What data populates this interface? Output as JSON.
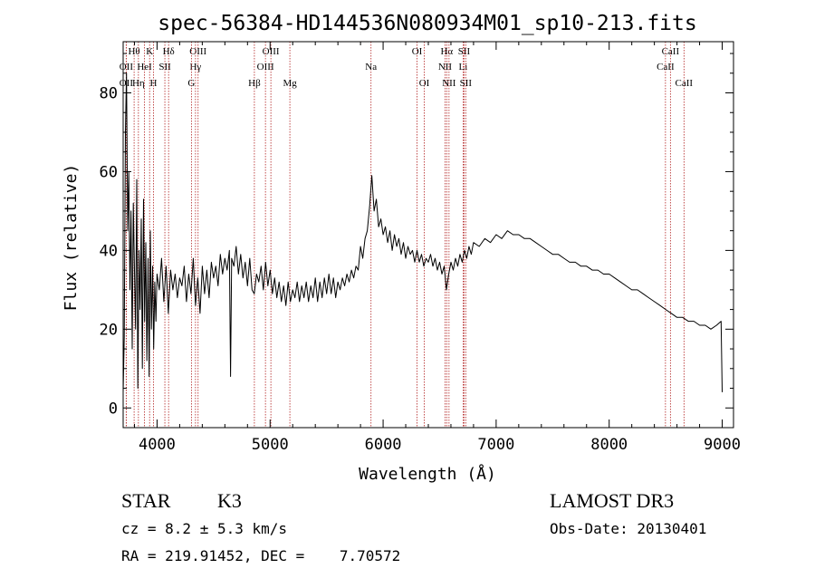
{
  "chart_data": {
    "type": "line",
    "title": "spec-56384-HD144536N080934M01_sp10-213.fits",
    "xlabel": "Wavelength (Å)",
    "ylabel": "Flux (relative)",
    "xlim": [
      3700,
      9100
    ],
    "ylim": [
      -5,
      93
    ],
    "xticks": [
      4000,
      5000,
      6000,
      7000,
      8000,
      9000
    ],
    "yticks": [
      0,
      20,
      40,
      60,
      80
    ],
    "line_color": "#000000",
    "marker_color": "#b22222",
    "spectrum": [
      [
        3700,
        4
      ],
      [
        3710,
        18
      ],
      [
        3720,
        70
      ],
      [
        3730,
        85
      ],
      [
        3740,
        45
      ],
      [
        3750,
        60
      ],
      [
        3760,
        30
      ],
      [
        3770,
        50
      ],
      [
        3780,
        15
      ],
      [
        3790,
        52
      ],
      [
        3800,
        35
      ],
      [
        3810,
        20
      ],
      [
        3820,
        58
      ],
      [
        3830,
        5
      ],
      [
        3840,
        40
      ],
      [
        3850,
        25
      ],
      [
        3860,
        48
      ],
      [
        3870,
        10
      ],
      [
        3880,
        53
      ],
      [
        3890,
        22
      ],
      [
        3900,
        42
      ],
      [
        3910,
        12
      ],
      [
        3920,
        38
      ],
      [
        3930,
        8
      ],
      [
        3940,
        45
      ],
      [
        3950,
        20
      ],
      [
        3960,
        36
      ],
      [
        3970,
        15
      ],
      [
        3980,
        32
      ],
      [
        3990,
        22
      ],
      [
        4000,
        34
      ],
      [
        4020,
        30
      ],
      [
        4040,
        38
      ],
      [
        4060,
        27
      ],
      [
        4080,
        36
      ],
      [
        4100,
        24
      ],
      [
        4120,
        35
      ],
      [
        4140,
        30
      ],
      [
        4160,
        34
      ],
      [
        4180,
        28
      ],
      [
        4200,
        33
      ],
      [
        4220,
        31
      ],
      [
        4240,
        36
      ],
      [
        4260,
        27
      ],
      [
        4280,
        34
      ],
      [
        4300,
        29
      ],
      [
        4320,
        38
      ],
      [
        4340,
        26
      ],
      [
        4360,
        33
      ],
      [
        4380,
        24
      ],
      [
        4400,
        36
      ],
      [
        4420,
        29
      ],
      [
        4440,
        35
      ],
      [
        4460,
        28
      ],
      [
        4480,
        37
      ],
      [
        4500,
        33
      ],
      [
        4520,
        36
      ],
      [
        4540,
        31
      ],
      [
        4560,
        39
      ],
      [
        4580,
        34
      ],
      [
        4600,
        38
      ],
      [
        4620,
        35
      ],
      [
        4640,
        40
      ],
      [
        4650,
        8
      ],
      [
        4660,
        38
      ],
      [
        4680,
        36
      ],
      [
        4700,
        41
      ],
      [
        4720,
        34
      ],
      [
        4740,
        39
      ],
      [
        4760,
        33
      ],
      [
        4780,
        37
      ],
      [
        4800,
        31
      ],
      [
        4820,
        38
      ],
      [
        4840,
        30
      ],
      [
        4860,
        29
      ],
      [
        4880,
        34
      ],
      [
        4900,
        32
      ],
      [
        4920,
        36
      ],
      [
        4940,
        30
      ],
      [
        4960,
        37
      ],
      [
        4980,
        31
      ],
      [
        5000,
        35
      ],
      [
        5020,
        29
      ],
      [
        5040,
        33
      ],
      [
        5060,
        28
      ],
      [
        5080,
        32
      ],
      [
        5100,
        27
      ],
      [
        5120,
        31
      ],
      [
        5140,
        26
      ],
      [
        5160,
        32
      ],
      [
        5180,
        27
      ],
      [
        5200,
        30
      ],
      [
        5220,
        28
      ],
      [
        5240,
        32
      ],
      [
        5260,
        27
      ],
      [
        5280,
        31
      ],
      [
        5300,
        28
      ],
      [
        5320,
        32
      ],
      [
        5340,
        27
      ],
      [
        5360,
        31
      ],
      [
        5380,
        28
      ],
      [
        5400,
        33
      ],
      [
        5420,
        27
      ],
      [
        5440,
        32
      ],
      [
        5460,
        28
      ],
      [
        5480,
        33
      ],
      [
        5500,
        29
      ],
      [
        5520,
        34
      ],
      [
        5540,
        29
      ],
      [
        5560,
        33
      ],
      [
        5580,
        28
      ],
      [
        5600,
        32
      ],
      [
        5620,
        30
      ],
      [
        5640,
        33
      ],
      [
        5660,
        31
      ],
      [
        5680,
        34
      ],
      [
        5700,
        32
      ],
      [
        5720,
        35
      ],
      [
        5740,
        33
      ],
      [
        5760,
        36
      ],
      [
        5780,
        35
      ],
      [
        5800,
        41
      ],
      [
        5820,
        38
      ],
      [
        5840,
        43
      ],
      [
        5860,
        45
      ],
      [
        5880,
        51
      ],
      [
        5900,
        59
      ],
      [
        5920,
        50
      ],
      [
        5940,
        53
      ],
      [
        5960,
        46
      ],
      [
        5980,
        48
      ],
      [
        6000,
        44
      ],
      [
        6020,
        46
      ],
      [
        6040,
        42
      ],
      [
        6060,
        45
      ],
      [
        6080,
        40
      ],
      [
        6100,
        44
      ],
      [
        6120,
        41
      ],
      [
        6140,
        43
      ],
      [
        6160,
        39
      ],
      [
        6180,
        42
      ],
      [
        6200,
        38
      ],
      [
        6220,
        41
      ],
      [
        6240,
        39
      ],
      [
        6260,
        40
      ],
      [
        6280,
        37
      ],
      [
        6300,
        40
      ],
      [
        6320,
        37
      ],
      [
        6340,
        39
      ],
      [
        6360,
        36
      ],
      [
        6380,
        38
      ],
      [
        6400,
        37
      ],
      [
        6420,
        39
      ],
      [
        6440,
        36
      ],
      [
        6460,
        38
      ],
      [
        6480,
        35
      ],
      [
        6500,
        37
      ],
      [
        6520,
        34
      ],
      [
        6540,
        36
      ],
      [
        6560,
        30
      ],
      [
        6580,
        34
      ],
      [
        6600,
        37
      ],
      [
        6620,
        35
      ],
      [
        6640,
        38
      ],
      [
        6660,
        36
      ],
      [
        6680,
        39
      ],
      [
        6700,
        37
      ],
      [
        6720,
        40
      ],
      [
        6740,
        38
      ],
      [
        6760,
        41
      ],
      [
        6780,
        39
      ],
      [
        6800,
        42
      ],
      [
        6850,
        41
      ],
      [
        6900,
        43
      ],
      [
        6950,
        42
      ],
      [
        7000,
        44
      ],
      [
        7050,
        43
      ],
      [
        7100,
        45
      ],
      [
        7150,
        44
      ],
      [
        7200,
        44
      ],
      [
        7250,
        43
      ],
      [
        7300,
        43
      ],
      [
        7350,
        42
      ],
      [
        7400,
        41
      ],
      [
        7450,
        40
      ],
      [
        7500,
        39
      ],
      [
        7550,
        39
      ],
      [
        7600,
        38
      ],
      [
        7650,
        37
      ],
      [
        7700,
        37
      ],
      [
        7750,
        36
      ],
      [
        7800,
        36
      ],
      [
        7850,
        35
      ],
      [
        7900,
        35
      ],
      [
        7950,
        34
      ],
      [
        8000,
        34
      ],
      [
        8050,
        33
      ],
      [
        8100,
        32
      ],
      [
        8150,
        31
      ],
      [
        8200,
        30
      ],
      [
        8250,
        30
      ],
      [
        8300,
        29
      ],
      [
        8350,
        28
      ],
      [
        8400,
        27
      ],
      [
        8450,
        26
      ],
      [
        8500,
        25
      ],
      [
        8550,
        24
      ],
      [
        8600,
        23
      ],
      [
        8650,
        23
      ],
      [
        8700,
        22
      ],
      [
        8750,
        22
      ],
      [
        8800,
        21
      ],
      [
        8850,
        21
      ],
      [
        8900,
        20
      ],
      [
        8950,
        21
      ],
      [
        8990,
        22
      ],
      [
        9000,
        4
      ]
    ],
    "line_markers": [
      {
        "label": "Hθ",
        "x": 3797,
        "row": 0
      },
      {
        "label": "OII",
        "x": 3727,
        "row": 1
      },
      {
        "label": "OII",
        "x": 3727,
        "row": 2
      },
      {
        "label": "Hη",
        "x": 3835,
        "row": 2
      },
      {
        "label": "HeI",
        "x": 3889,
        "row": 1
      },
      {
        "label": "K",
        "x": 3934,
        "row": 0
      },
      {
        "label": "H",
        "x": 3968,
        "row": 2
      },
      {
        "label": "SII",
        "x": 4069,
        "row": 1
      },
      {
        "label": "Hδ",
        "x": 4102,
        "row": 0
      },
      {
        "label": "OIII",
        "x": 4363,
        "row": 0
      },
      {
        "label": "Hγ",
        "x": 4340,
        "row": 1
      },
      {
        "label": "G",
        "x": 4304,
        "row": 2
      },
      {
        "label": "Hβ",
        "x": 4861,
        "row": 2
      },
      {
        "label": "OIII",
        "x": 5007,
        "row": 0
      },
      {
        "label": "OIII",
        "x": 4959,
        "row": 1
      },
      {
        "label": "Mg",
        "x": 5175,
        "row": 2
      },
      {
        "label": "Na",
        "x": 5893,
        "row": 1
      },
      {
        "label": "OI",
        "x": 6300,
        "row": 0
      },
      {
        "label": "OI",
        "x": 6364,
        "row": 2
      },
      {
        "label": "Hα",
        "x": 6563,
        "row": 0
      },
      {
        "label": "NII",
        "x": 6548,
        "row": 1
      },
      {
        "label": "NII",
        "x": 6583,
        "row": 2
      },
      {
        "label": "SII",
        "x": 6716,
        "row": 0
      },
      {
        "label": "Li",
        "x": 6708,
        "row": 1
      },
      {
        "label": "SII",
        "x": 6731,
        "row": 2
      },
      {
        "label": "CaII",
        "x": 8542,
        "row": 0
      },
      {
        "label": "CaII",
        "x": 8498,
        "row": 1
      },
      {
        "label": "CaII",
        "x": 8662,
        "row": 2
      }
    ]
  },
  "info": {
    "class_label": "STAR",
    "subclass": "K3",
    "survey": "LAMOST DR3",
    "redshift": "cz = 8.2 ± 5.3 km/s",
    "obs_date": "Obs-Date: 20130401",
    "coords": "RA = 219.91452, DEC =    7.70572"
  }
}
